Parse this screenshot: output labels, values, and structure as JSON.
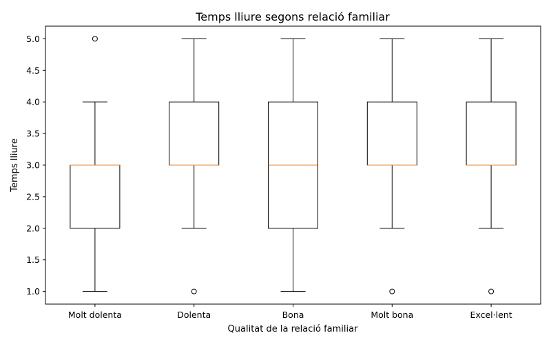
{
  "chart_data": {
    "type": "boxplot",
    "title": "Temps lliure segons relació familiar",
    "xlabel": "Qualitat de la relació familiar",
    "ylabel": "Temps lliure",
    "categories": [
      "Molt dolenta",
      "Dolenta",
      "Bona",
      "Molt bona",
      "Excel·lent"
    ],
    "yticks": [
      "1.0",
      "1.5",
      "2.0",
      "2.5",
      "3.0",
      "3.5",
      "4.0",
      "4.5",
      "5.0"
    ],
    "ylim": [
      0.8,
      5.2
    ],
    "grid": false,
    "boxes": [
      {
        "whisker_low": 1,
        "q1": 2,
        "median": 3,
        "q3": 3,
        "whisker_high": 4,
        "outliers": [
          5
        ]
      },
      {
        "whisker_low": 2,
        "q1": 3,
        "median": 3,
        "q3": 4,
        "whisker_high": 5,
        "outliers": [
          1
        ]
      },
      {
        "whisker_low": 1,
        "q1": 2,
        "median": 3,
        "q3": 4,
        "whisker_high": 5,
        "outliers": []
      },
      {
        "whisker_low": 2,
        "q1": 3,
        "median": 3,
        "q3": 4,
        "whisker_high": 5,
        "outliers": [
          1
        ]
      },
      {
        "whisker_low": 2,
        "q1": 3,
        "median": 3,
        "q3": 4,
        "whisker_high": 5,
        "outliers": [
          1
        ]
      }
    ],
    "colors": {
      "box": "#000000",
      "median": "#ff7f0e",
      "outlier": "#000000"
    }
  }
}
